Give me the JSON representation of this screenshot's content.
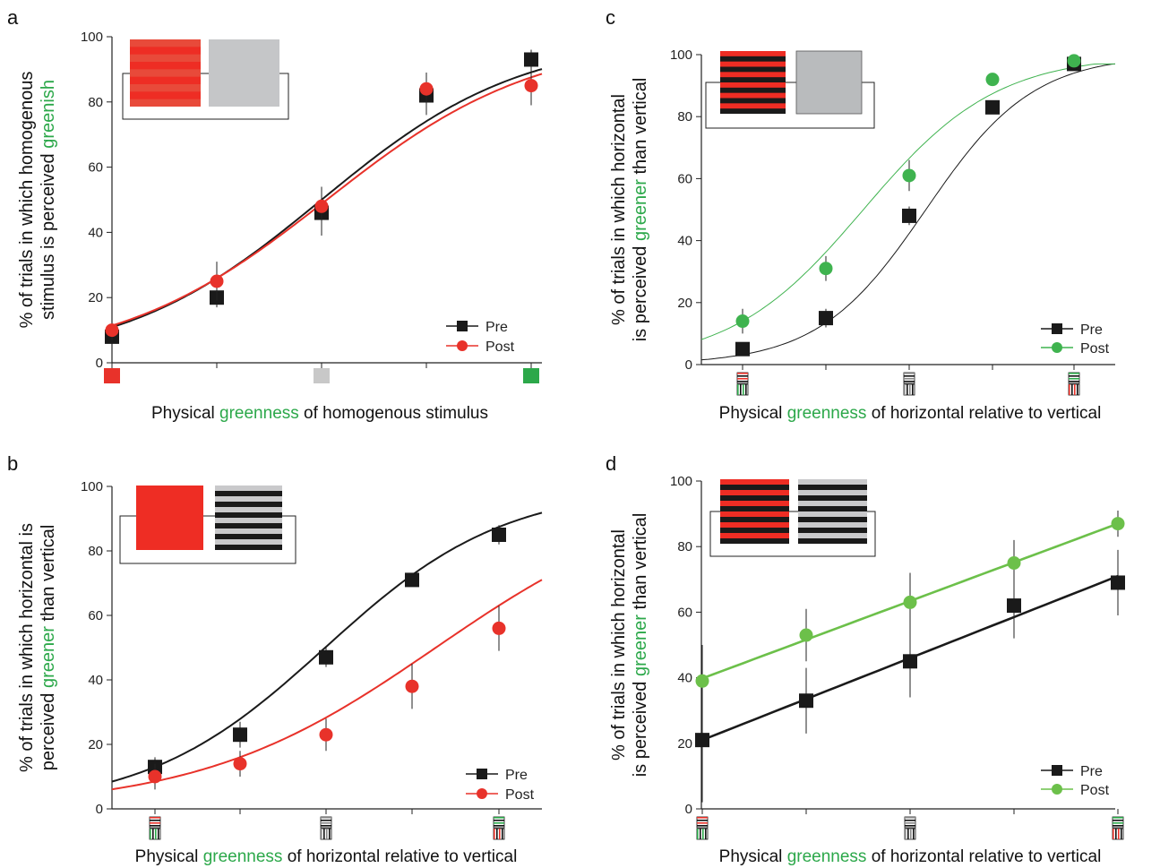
{
  "colors": {
    "green": "#2ca84a",
    "red": "#e8322a",
    "black": "#1a1a1a",
    "gray": "#bbbbbb",
    "light_green": "#5cb85c"
  },
  "chart_data": [
    {
      "panel": "a",
      "type": "line",
      "ylim": [
        0,
        100
      ],
      "yticks": [
        0,
        20,
        40,
        60,
        80,
        100
      ],
      "x": [
        1,
        2,
        3,
        4,
        5
      ],
      "ylabel": {
        "line1": "% of trials in which homogenous",
        "line2_prefix": "stimulus is perceived ",
        "line2_highlight": "greenish"
      },
      "xlabel": {
        "prefix": "Physical ",
        "highlight": "greenness",
        "suffix": " of homogenous stimulus"
      },
      "series": [
        {
          "name": "Pre",
          "color": "#1a1a1a",
          "marker": "square",
          "values": [
            8,
            20,
            46,
            82,
            93
          ],
          "errors": [
            3,
            3,
            7,
            6,
            3
          ]
        },
        {
          "name": "Post",
          "color": "#e8322a",
          "marker": "circle",
          "values": [
            10,
            25,
            48,
            84,
            85
          ],
          "errors": [
            3,
            6,
            6,
            5,
            6
          ]
        }
      ]
    },
    {
      "panel": "b",
      "type": "line",
      "ylim": [
        0,
        100
      ],
      "yticks": [
        0,
        20,
        40,
        60,
        80,
        100
      ],
      "x": [
        1,
        2,
        3,
        4,
        5
      ],
      "ylabel": {
        "line1": "% of trials in which horizontal is",
        "line2_prefix": "perceived ",
        "line2_highlight": "greener",
        "line2_suffix": " than vertical"
      },
      "xlabel": {
        "prefix": "Physical ",
        "highlight": "greenness",
        "suffix": " of horizontal relative to vertical"
      },
      "series": [
        {
          "name": "Pre",
          "color": "#1a1a1a",
          "marker": "square",
          "values": [
            13,
            23,
            47,
            71,
            85
          ],
          "errors": [
            3,
            4,
            3,
            2,
            3
          ]
        },
        {
          "name": "Post",
          "color": "#e8322a",
          "marker": "circle",
          "values": [
            10,
            14,
            23,
            38,
            56
          ],
          "errors": [
            4,
            4,
            5,
            7,
            7
          ]
        }
      ]
    },
    {
      "panel": "c",
      "type": "line",
      "ylim": [
        0,
        100
      ],
      "yticks": [
        0,
        20,
        40,
        60,
        80,
        100
      ],
      "x": [
        1,
        2,
        3,
        4,
        5
      ],
      "ylabel": {
        "line1": "% of trials in which horizontal",
        "line2_prefix": "is perceived ",
        "line2_highlight": "greener",
        "line2_suffix": " than vertical"
      },
      "xlabel": {
        "prefix": "Physical ",
        "highlight": "greenness",
        "suffix": " of horizontal relative to vertical"
      },
      "series": [
        {
          "name": "Pre",
          "color": "#1a1a1a",
          "marker": "square",
          "values": [
            5,
            15,
            48,
            83,
            97
          ],
          "errors": [
            2,
            3,
            3,
            2,
            2
          ]
        },
        {
          "name": "Post",
          "color": "#3fb34f",
          "marker": "circle",
          "values": [
            14,
            31,
            61,
            92,
            98
          ],
          "errors": [
            4,
            4,
            5,
            2,
            2
          ]
        }
      ]
    },
    {
      "panel": "d",
      "type": "line",
      "ylim": [
        0,
        100
      ],
      "yticks": [
        0,
        20,
        40,
        60,
        80,
        100
      ],
      "x": [
        1,
        2,
        3,
        4,
        5
      ],
      "ylabel": {
        "line1": "% of trials in which horizontal",
        "line2_prefix": "is perceived ",
        "line2_highlight": "greener",
        "line2_suffix": " than vertical"
      },
      "xlabel": {
        "prefix": "Physical ",
        "highlight": "greenness",
        "suffix": " of horizontal relative to vertical"
      },
      "series": [
        {
          "name": "Pre",
          "color": "#1a1a1a",
          "marker": "square",
          "values": [
            21,
            33,
            45,
            62,
            69
          ],
          "errors": [
            19,
            10,
            11,
            10,
            10
          ]
        },
        {
          "name": "Post",
          "color": "#6cc04a",
          "marker": "circle",
          "values": [
            39,
            53,
            63,
            75,
            87
          ],
          "errors": [
            11,
            8,
            9,
            7,
            4
          ]
        }
      ]
    }
  ]
}
